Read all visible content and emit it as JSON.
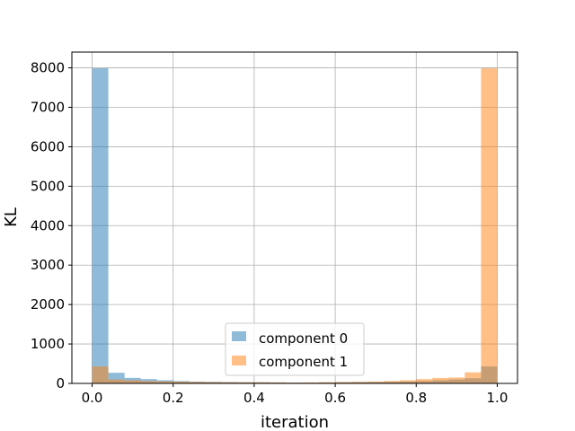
{
  "chart_data": {
    "type": "bar",
    "xlabel": "iteration",
    "ylabel": "KL",
    "xlim": [
      -0.05,
      1.05
    ],
    "ylim": [
      0,
      8400
    ],
    "grid": true,
    "legend_position": "lower-center",
    "x_ticks": [
      "0.0",
      "0.2",
      "0.4",
      "0.6",
      "0.8",
      "1.0"
    ],
    "x_tick_values": [
      0.0,
      0.2,
      0.4,
      0.6,
      0.8,
      1.0
    ],
    "y_ticks": [
      "0",
      "1000",
      "2000",
      "3000",
      "4000",
      "5000",
      "6000",
      "7000",
      "8000"
    ],
    "y_tick_values": [
      0,
      1000,
      2000,
      3000,
      4000,
      5000,
      6000,
      7000,
      8000
    ],
    "bin_edges": [
      0.0,
      0.04,
      0.08,
      0.12,
      0.16,
      0.2,
      0.24,
      0.28,
      0.32,
      0.36,
      0.4,
      0.44,
      0.48,
      0.52,
      0.56,
      0.6,
      0.64,
      0.68,
      0.72,
      0.76,
      0.8,
      0.84,
      0.88,
      0.92,
      0.96,
      1.0
    ],
    "series": [
      {
        "name": "component 0",
        "color": "#1f77b4",
        "values": [
          7990,
          270,
          140,
          110,
          80,
          60,
          45,
          40,
          35,
          30,
          30,
          25,
          20,
          20,
          25,
          30,
          35,
          40,
          45,
          50,
          60,
          80,
          100,
          130,
          430
        ]
      },
      {
        "name": "component 1",
        "color": "#ff7f0e",
        "values": [
          430,
          100,
          80,
          60,
          50,
          45,
          40,
          35,
          30,
          30,
          30,
          25,
          20,
          25,
          30,
          35,
          40,
          45,
          60,
          80,
          110,
          140,
          150,
          280,
          7990
        ]
      }
    ]
  }
}
